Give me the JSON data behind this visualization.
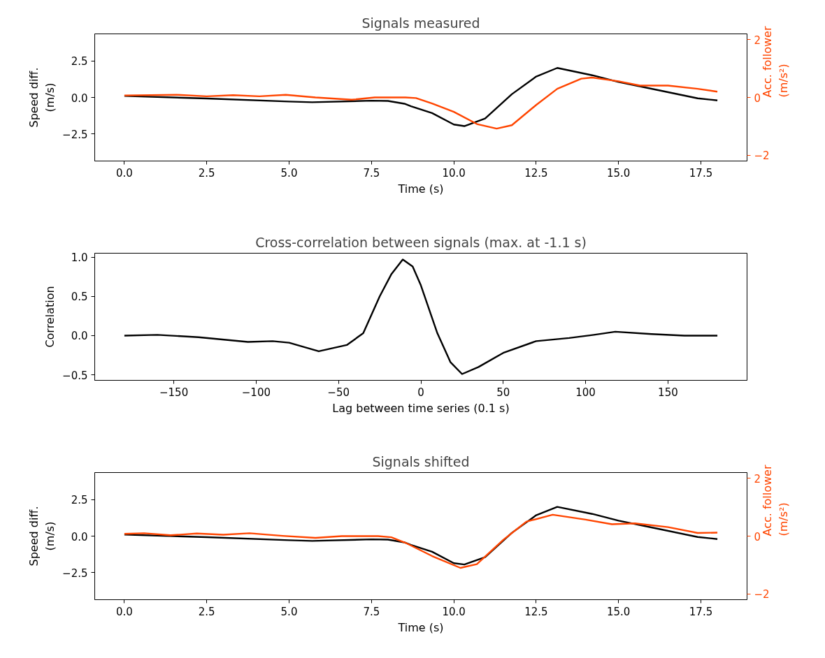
{
  "chart_data": [
    {
      "type": "line",
      "title": "Signals measured",
      "xlabel": "Time (s)",
      "ylabel": "Speed diff.\n(m/s)",
      "y2label": "Acc. follower\n(m/s²)",
      "xlim": [
        -0.9,
        18.9
      ],
      "xticks": [
        {
          "value": 0,
          "label": "0.0"
        },
        2.5,
        {
          "value": 5,
          "label": "5.0"
        },
        7.5,
        {
          "value": 10,
          "label": "10.0"
        },
        12.5,
        {
          "value": 15,
          "label": "15.0"
        },
        17.5
      ],
      "ylim": [
        -4.35,
        4.35
      ],
      "yticks": [
        {
          "value": -2.5,
          "label": "−2.5"
        },
        {
          "value": 0,
          "label": "0.0"
        },
        {
          "value": 2.5,
          "label": "2.5"
        }
      ],
      "y2lim": [
        -2.2,
        2.2
      ],
      "y2ticks": [
        {
          "value": -2,
          "label": "−2"
        },
        {
          "value": 0,
          "label": "0"
        },
        {
          "value": 2,
          "label": "2"
        }
      ],
      "grid": false,
      "marker": "none",
      "line_style": "solid",
      "series": [
        {
          "color": "#000000",
          "x": [
            0,
            2.5,
            5,
            5.7,
            7.5,
            8,
            8.5,
            8.7,
            9.34,
            10,
            10.32,
            10.95,
            11.76,
            12.5,
            13.14,
            14.2,
            15,
            16.2,
            17.4,
            18
          ],
          "values": [
            0.1,
            -0.07,
            -0.28,
            -0.33,
            -0.22,
            -0.24,
            -0.43,
            -0.6,
            -1.07,
            -1.85,
            -1.96,
            -1.44,
            0.22,
            1.43,
            2.02,
            1.52,
            1.06,
            0.5,
            -0.06,
            -0.2
          ]
        },
        {
          "color": "#ff4500",
          "axis": "y2",
          "x": [
            0,
            1.6,
            2.5,
            3.3,
            4.1,
            4.9,
            5.8,
            6.9,
            7.6,
            8.53,
            8.85,
            9.34,
            10,
            10.7,
            11.3,
            11.76,
            12.5,
            13.14,
            13.87,
            14.2,
            15,
            15.65,
            16.5,
            17.4,
            18
          ],
          "values": [
            0.07,
            0.09,
            0.04,
            0.08,
            0.04,
            0.09,
            0,
            -0.08,
            0,
            0,
            -0.02,
            -0.21,
            -0.5,
            -0.92,
            -1.08,
            -0.96,
            -0.26,
            0.3,
            0.65,
            0.69,
            0.56,
            0.41,
            0.41,
            0.3,
            0.2
          ]
        }
      ]
    },
    {
      "type": "line",
      "title": "Cross-correlation between signals (max. at -1.1 s)",
      "xlabel": "Lag between time series (0.1 s)",
      "ylabel": "Correlation",
      "xlim": [
        -198,
        198
      ],
      "xticks": [
        {
          "value": -150,
          "label": "−150"
        },
        {
          "value": -100,
          "label": "−100"
        },
        {
          "value": -50,
          "label": "−50"
        },
        0,
        50,
        100,
        150
      ],
      "ylim": [
        -0.57,
        1.05
      ],
      "yticks": [
        {
          "value": -0.5,
          "label": "−0.5"
        },
        {
          "value": 0,
          "label": "0.0"
        },
        {
          "value": 0.5,
          "label": "0.5"
        },
        {
          "value": 1,
          "label": "1.0"
        }
      ],
      "grid": false,
      "marker": "none",
      "line_style": "solid",
      "series": [
        {
          "color": "#000000",
          "x": [
            -180,
            -160,
            -135,
            -105,
            -90,
            -80,
            -62,
            -45,
            -35,
            -25,
            -18,
            -11,
            -5,
            0,
            10,
            18,
            25,
            35,
            50,
            70,
            90,
            105,
            118,
            140,
            160,
            180
          ],
          "values": [
            0,
            0.01,
            -0.02,
            -0.08,
            -0.07,
            -0.09,
            -0.2,
            -0.12,
            0.03,
            0.5,
            0.78,
            0.97,
            0.88,
            0.64,
            0.03,
            -0.34,
            -0.49,
            -0.4,
            -0.22,
            -0.07,
            -0.03,
            0.01,
            0.05,
            0.02,
            0,
            0
          ]
        }
      ]
    },
    {
      "type": "line",
      "title": "Signals shifted",
      "xlabel": "Time (s)",
      "ylabel": "Speed diff.\n(m/s)",
      "y2label": "Acc. follower\n(m/s²)",
      "xlim": [
        -0.9,
        18.9
      ],
      "xticks": [
        {
          "value": 0,
          "label": "0.0"
        },
        2.5,
        {
          "value": 5,
          "label": "5.0"
        },
        7.5,
        {
          "value": 10,
          "label": "10.0"
        },
        12.5,
        {
          "value": 15,
          "label": "15.0"
        },
        17.5
      ],
      "ylim": [
        -4.35,
        4.35
      ],
      "yticks": [
        {
          "value": -2.5,
          "label": "−2.5"
        },
        {
          "value": 0,
          "label": "0.0"
        },
        {
          "value": 2.5,
          "label": "2.5"
        }
      ],
      "y2lim": [
        -2.2,
        2.2
      ],
      "y2ticks": [
        {
          "value": -2,
          "label": "−2"
        },
        {
          "value": 0,
          "label": "0"
        },
        {
          "value": 2,
          "label": "2"
        }
      ],
      "grid": false,
      "marker": "none",
      "line_style": "solid",
      "series": [
        {
          "color": "#000000",
          "x": [
            0,
            2.5,
            5,
            5.7,
            7.5,
            8,
            8.5,
            8.7,
            9.34,
            10,
            10.32,
            10.95,
            11.76,
            12.5,
            13.14,
            14.2,
            15,
            16.2,
            17.4,
            18
          ],
          "values": [
            0.1,
            -0.07,
            -0.28,
            -0.33,
            -0.22,
            -0.24,
            -0.43,
            -0.6,
            -1.07,
            -1.85,
            -1.94,
            -1.44,
            0.22,
            1.43,
            2.0,
            1.52,
            1.06,
            0.5,
            -0.06,
            -0.2
          ]
        },
        {
          "color": "#ff4500",
          "axis": "y2",
          "x": [
            0,
            0.6,
            1.4,
            2.2,
            3,
            3.8,
            4.8,
            5.8,
            6.6,
            7.7,
            8.1,
            8.53,
            9.34,
            10.2,
            10.7,
            11.5,
            12.2,
            13,
            14,
            14.8,
            15.5,
            16.5,
            17.4,
            18
          ],
          "values": [
            0.08,
            0.1,
            0.03,
            0.09,
            0.05,
            0.1,
            0.01,
            -0.06,
            0,
            0,
            -0.04,
            -0.23,
            -0.69,
            -1.1,
            -0.97,
            -0.13,
            0.5,
            0.74,
            0.57,
            0.41,
            0.44,
            0.31,
            0.11,
            0.12
          ]
        }
      ]
    }
  ]
}
